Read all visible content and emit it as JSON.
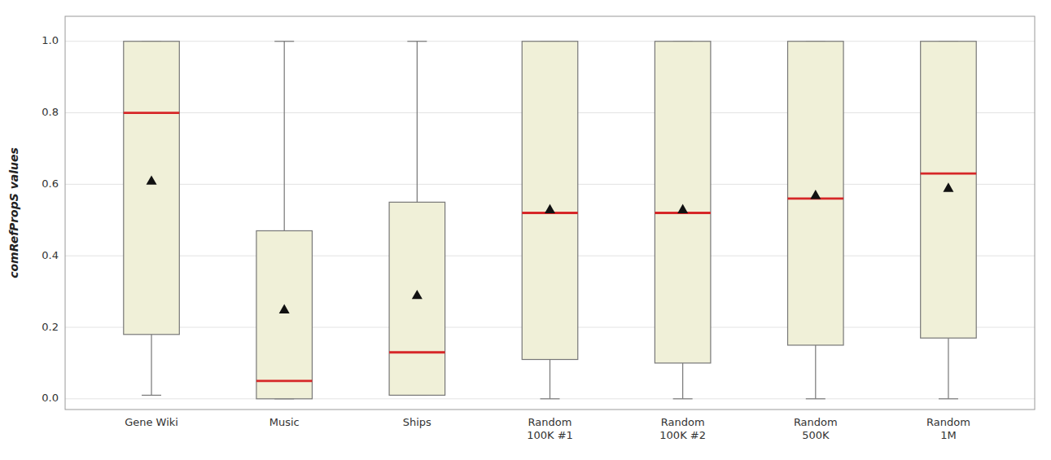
{
  "chart_data": {
    "type": "box",
    "categories": [
      "Gene Wiki",
      "Music",
      "Ships",
      "Random\n100K #1",
      "Random\n100K #2",
      "Random\n500K",
      "Random\n1M"
    ],
    "boxes": [
      {
        "min": 0.01,
        "q1": 0.18,
        "median": 0.8,
        "q3": 1.0,
        "max": 1.0,
        "mean": 0.61
      },
      {
        "min": 0.0,
        "q1": 0.0,
        "median": 0.05,
        "q3": 0.47,
        "max": 1.0,
        "mean": 0.25
      },
      {
        "min": 0.01,
        "q1": 0.01,
        "median": 0.13,
        "q3": 0.55,
        "max": 1.0,
        "mean": 0.29
      },
      {
        "min": 0.0,
        "q1": 0.11,
        "median": 0.52,
        "q3": 1.0,
        "max": 1.0,
        "mean": 0.53
      },
      {
        "min": 0.0,
        "q1": 0.1,
        "median": 0.52,
        "q3": 1.0,
        "max": 1.0,
        "mean": 0.53
      },
      {
        "min": 0.0,
        "q1": 0.15,
        "median": 0.56,
        "q3": 1.0,
        "max": 1.0,
        "mean": 0.57
      },
      {
        "min": 0.0,
        "q1": 0.17,
        "median": 0.63,
        "q3": 1.0,
        "max": 1.0,
        "mean": 0.59
      }
    ],
    "color": "#f0f0d8",
    "ylabel": "comRefPropS values",
    "ylim": [
      -0.03,
      1.07
    ],
    "yticks": [
      {
        "value": 0,
        "label": "0.0"
      },
      0.2,
      0.4,
      0.6,
      0.8,
      {
        "value": 1,
        "label": "1.0"
      }
    ],
    "grid": true
  }
}
